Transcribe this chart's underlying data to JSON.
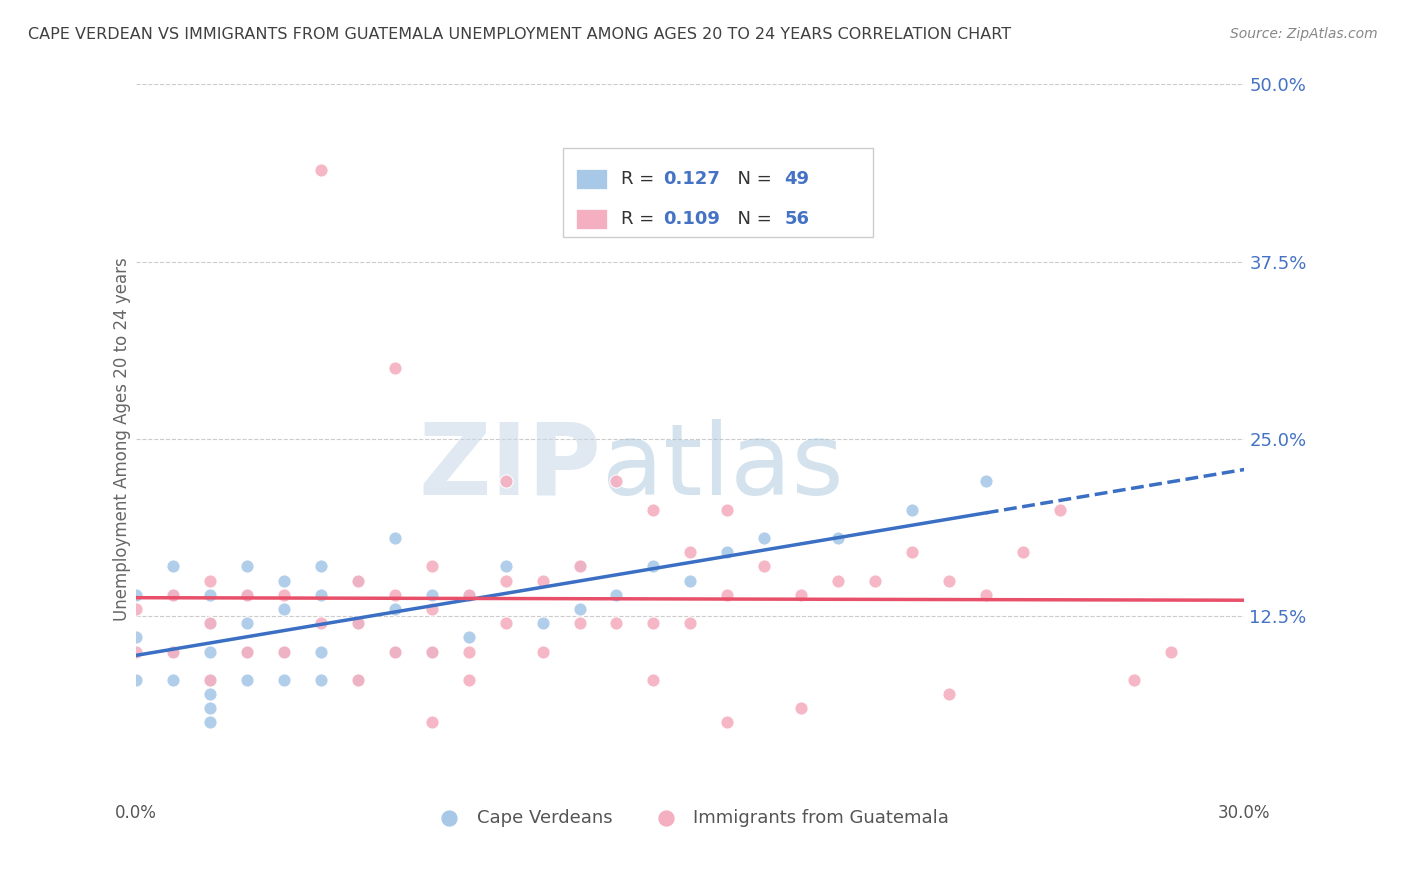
{
  "title": "CAPE VERDEAN VS IMMIGRANTS FROM GUATEMALA UNEMPLOYMENT AMONG AGES 20 TO 24 YEARS CORRELATION CHART",
  "source": "Source: ZipAtlas.com",
  "ylabel": "Unemployment Among Ages 20 to 24 years",
  "xlim": [
    0.0,
    0.3
  ],
  "ylim": [
    0.0,
    0.5
  ],
  "xticks": [
    0.0,
    0.05,
    0.1,
    0.15,
    0.2,
    0.25,
    0.3
  ],
  "xticklabels": [
    "0.0%",
    "",
    "",
    "",
    "",
    "",
    "30.0%"
  ],
  "yticks_right": [
    0.0,
    0.125,
    0.25,
    0.375,
    0.5
  ],
  "ytick_right_labels": [
    "",
    "12.5%",
    "25.0%",
    "37.5%",
    "50.0%"
  ],
  "blue_R": 0.127,
  "blue_N": 49,
  "pink_R": 0.109,
  "pink_N": 56,
  "blue_color": "#a8c8e8",
  "pink_color": "#f4afc0",
  "blue_trend_color": "#3a6fc4",
  "pink_trend_color": "#e8506a",
  "legend_blue_label": "Cape Verdeans",
  "legend_pink_label": "Immigrants from Guatemala",
  "watermark_zip": "ZIP",
  "watermark_atlas": "atlas",
  "background_color": "#ffffff",
  "grid_color": "#cccccc",
  "title_color": "#404040",
  "axis_label_color": "#666666",
  "right_tick_color": "#4472c4",
  "blue_scatter_x": [
    0.0,
    0.0,
    0.0,
    0.01,
    0.01,
    0.01,
    0.01,
    0.02,
    0.02,
    0.02,
    0.02,
    0.02,
    0.02,
    0.03,
    0.03,
    0.03,
    0.03,
    0.03,
    0.04,
    0.04,
    0.04,
    0.04,
    0.05,
    0.05,
    0.05,
    0.05,
    0.06,
    0.06,
    0.06,
    0.07,
    0.07,
    0.07,
    0.08,
    0.08,
    0.09,
    0.09,
    0.1,
    0.11,
    0.12,
    0.12,
    0.13,
    0.14,
    0.15,
    0.16,
    0.17,
    0.19,
    0.21,
    0.23,
    0.02
  ],
  "blue_scatter_y": [
    0.08,
    0.11,
    0.14,
    0.08,
    0.1,
    0.14,
    0.16,
    0.06,
    0.08,
    0.1,
    0.12,
    0.14,
    0.07,
    0.08,
    0.1,
    0.12,
    0.14,
    0.16,
    0.08,
    0.1,
    0.13,
    0.15,
    0.08,
    0.1,
    0.14,
    0.16,
    0.08,
    0.12,
    0.15,
    0.1,
    0.13,
    0.18,
    0.1,
    0.14,
    0.11,
    0.14,
    0.16,
    0.12,
    0.13,
    0.16,
    0.14,
    0.16,
    0.15,
    0.17,
    0.18,
    0.18,
    0.2,
    0.22,
    0.05
  ],
  "pink_scatter_x": [
    0.0,
    0.0,
    0.01,
    0.01,
    0.02,
    0.02,
    0.02,
    0.03,
    0.03,
    0.04,
    0.04,
    0.05,
    0.05,
    0.06,
    0.06,
    0.06,
    0.07,
    0.07,
    0.07,
    0.08,
    0.08,
    0.08,
    0.09,
    0.09,
    0.1,
    0.1,
    0.1,
    0.11,
    0.11,
    0.12,
    0.12,
    0.13,
    0.13,
    0.14,
    0.14,
    0.15,
    0.15,
    0.16,
    0.16,
    0.17,
    0.18,
    0.19,
    0.2,
    0.21,
    0.22,
    0.23,
    0.24,
    0.25,
    0.27,
    0.28,
    0.09,
    0.14,
    0.18,
    0.22,
    0.08,
    0.16
  ],
  "pink_scatter_y": [
    0.1,
    0.13,
    0.1,
    0.14,
    0.08,
    0.12,
    0.15,
    0.1,
    0.14,
    0.1,
    0.14,
    0.12,
    0.44,
    0.08,
    0.12,
    0.15,
    0.1,
    0.14,
    0.3,
    0.1,
    0.13,
    0.16,
    0.1,
    0.14,
    0.12,
    0.15,
    0.22,
    0.1,
    0.15,
    0.12,
    0.16,
    0.12,
    0.22,
    0.12,
    0.2,
    0.12,
    0.17,
    0.14,
    0.2,
    0.16,
    0.14,
    0.15,
    0.15,
    0.17,
    0.15,
    0.14,
    0.17,
    0.2,
    0.08,
    0.1,
    0.08,
    0.08,
    0.06,
    0.07,
    0.05,
    0.05
  ]
}
